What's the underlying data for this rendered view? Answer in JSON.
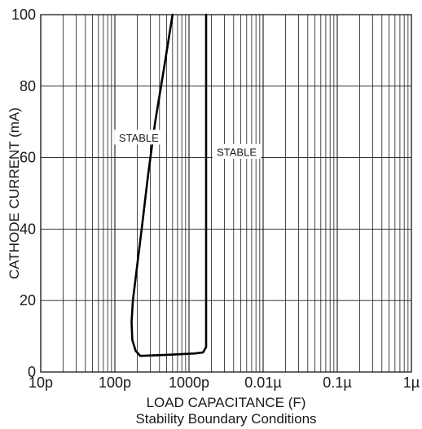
{
  "chart_data": {
    "type": "line",
    "title": "",
    "caption": "Stability Boundary Conditions",
    "xlabel": "LOAD CAPACITANCE (F)",
    "ylabel": "CATHODE CURRENT (mA)",
    "x_scale": "log",
    "xlim": [
      "10p",
      "1µ"
    ],
    "xlim_farads": [
      1e-11,
      1e-06
    ],
    "ylim": [
      0,
      100
    ],
    "x_ticks": [
      {
        "label": "10p",
        "value": 1e-11
      },
      {
        "label": "100p",
        "value": 1e-10
      },
      {
        "label": "1000p",
        "value": 1e-09
      },
      {
        "label": "0.01µ",
        "value": 1e-08
      },
      {
        "label": "0.1µ",
        "value": 1e-07
      },
      {
        "label": "1µ",
        "value": 1e-06
      }
    ],
    "y_ticks": [
      {
        "label": "0",
        "value": 0
      },
      {
        "label": "20",
        "value": 20
      },
      {
        "label": "40",
        "value": 40
      },
      {
        "label": "60",
        "value": 60
      },
      {
        "label": "80",
        "value": 80
      },
      {
        "label": "100",
        "value": 100
      }
    ],
    "grid": true,
    "annotations": [
      {
        "text": "STABLE",
        "x": 2.1e-10,
        "y": 65.5
      },
      {
        "text": "STABLE",
        "x": 4.4e-09,
        "y": 61.5
      }
    ],
    "series": [
      {
        "color": "#000000",
        "points": [
          {
            "x": 6e-10,
            "y": 100
          },
          {
            "x": 4.6e-10,
            "y": 85
          },
          {
            "x": 3.5e-10,
            "y": 70
          },
          {
            "x": 2.8e-10,
            "y": 55
          },
          {
            "x": 2.3e-10,
            "y": 40
          },
          {
            "x": 1.95e-10,
            "y": 28
          },
          {
            "x": 1.75e-10,
            "y": 20
          },
          {
            "x": 1.68e-10,
            "y": 14
          },
          {
            "x": 1.72e-10,
            "y": 9
          },
          {
            "x": 1.9e-10,
            "y": 6
          },
          {
            "x": 2.2e-10,
            "y": 4.5
          },
          {
            "x": 5e-10,
            "y": 4.8
          },
          {
            "x": 1.2e-09,
            "y": 5.2
          },
          {
            "x": 1.55e-09,
            "y": 5.5
          },
          {
            "x": 1.7e-09,
            "y": 7
          },
          {
            "x": 1.7e-09,
            "y": 100
          }
        ]
      }
    ]
  }
}
